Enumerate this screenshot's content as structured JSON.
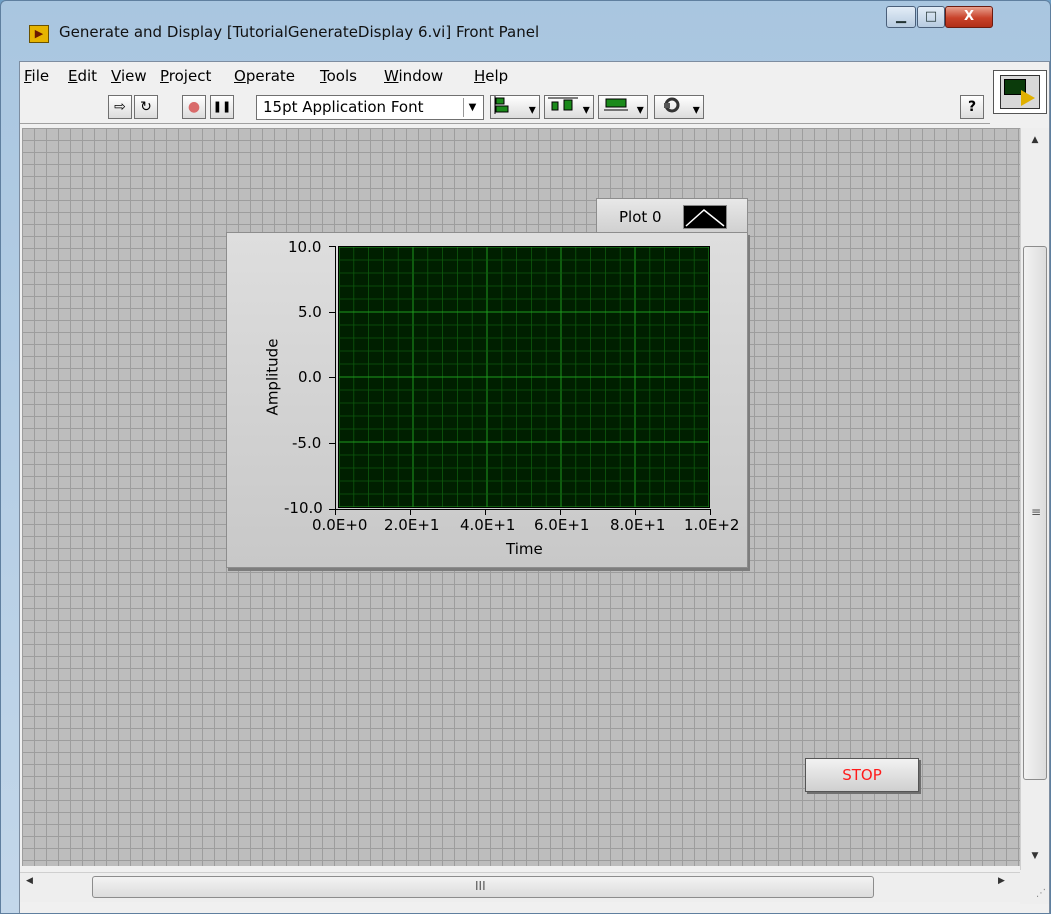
{
  "window": {
    "title": "Generate and Display [TutorialGenerateDisplay 6.vi] Front Panel",
    "controls": {
      "minimize": "▁",
      "maximize": "□",
      "close": "X"
    }
  },
  "menu": {
    "items": [
      "File",
      "Edit",
      "View",
      "Project",
      "Operate",
      "Tools",
      "Window",
      "Help"
    ]
  },
  "toolbar": {
    "run": "⇨",
    "run_continuously": "↻",
    "abort": "●",
    "pause": "❚❚",
    "font_select": "15pt Application Font",
    "font_arrow": "▼",
    "align": "▾",
    "distribute": "▾",
    "resize": "▾",
    "reorder": "▾",
    "help": "?"
  },
  "graph": {
    "legend": {
      "label": "Plot 0"
    },
    "y_ticks": [
      "10.0",
      "5.0",
      "0.0",
      "-5.0",
      "-10.0"
    ],
    "x_ticks": [
      "0.0E+0",
      "2.0E+1",
      "4.0E+1",
      "6.0E+1",
      "8.0E+1",
      "1.0E+2"
    ],
    "y_title": "Amplitude",
    "x_title": "Time",
    "colors": {
      "plot_bg": "#001f00",
      "grid_major": "#1e9a1e",
      "grid_minor": "#0e5a0e"
    }
  },
  "stop_button": {
    "label": "STOP",
    "color": "#ff1a1a"
  },
  "scrollbars": {
    "vertical_grip": "≡",
    "horizontal_grip": "III",
    "up": "▲",
    "down": "▼",
    "left": "◀",
    "right": "▶"
  }
}
